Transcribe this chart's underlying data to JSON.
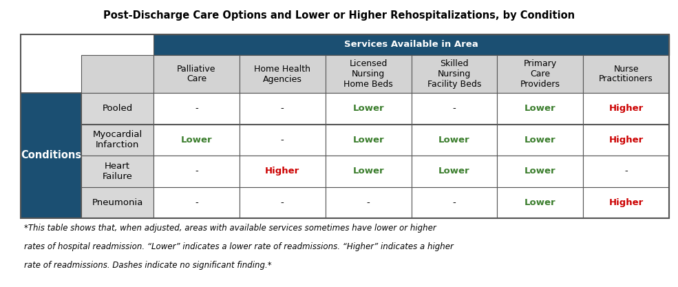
{
  "title": "Post-Discharge Care Options and Lower or Higher Rehospitalizations, by Condition",
  "header_main": "Services Available in Area",
  "col_headers": [
    "Palliative\nCare",
    "Home Health\nAgencies",
    "Licensed\nNursing\nHome Beds",
    "Skilled\nNursing\nFacility Beds",
    "Primary\nCare\nProviders",
    "Nurse\nPractitioners"
  ],
  "row_headers": [
    "Pooled",
    "Myocardial\nInfarction",
    "Heart\nFailure",
    "Pneumonia"
  ],
  "row_label": "Conditions",
  "cell_data": [
    [
      "-",
      "-",
      "Lower",
      "-",
      "Lower",
      "Higher"
    ],
    [
      "Lower",
      "-",
      "Lower",
      "Lower",
      "Lower",
      "Higher"
    ],
    [
      "-",
      "Higher",
      "Lower",
      "Lower",
      "Lower",
      "-"
    ],
    [
      "-",
      "-",
      "-",
      "-",
      "Lower",
      "Higher"
    ]
  ],
  "lower_color": "#3a7d2c",
  "higher_color": "#CC0000",
  "dash_color": "#000000",
  "header_bg": "#1B4F72",
  "header_text_color": "#FFFFFF",
  "side_header_bg": "#1B4F72",
  "side_header_text_color": "#FFFFFF",
  "col_header_bg": "#D3D3D3",
  "row_header_bg": "#D8D8D8",
  "border_color": "#555555",
  "footnote": "*This table shows that, when adjusted, areas with available services sometimes have lower or higher\nrates of hospital readmission. “Lower” indicates a lower rate of readmissions. “Higher” indicates a higher\nrate of readmissions. Dashes indicate no significant finding.*",
  "title_fontsize": 10.5,
  "header_fontsize": 9.0,
  "cell_fontsize": 9.5,
  "footnote_fontsize": 8.5
}
